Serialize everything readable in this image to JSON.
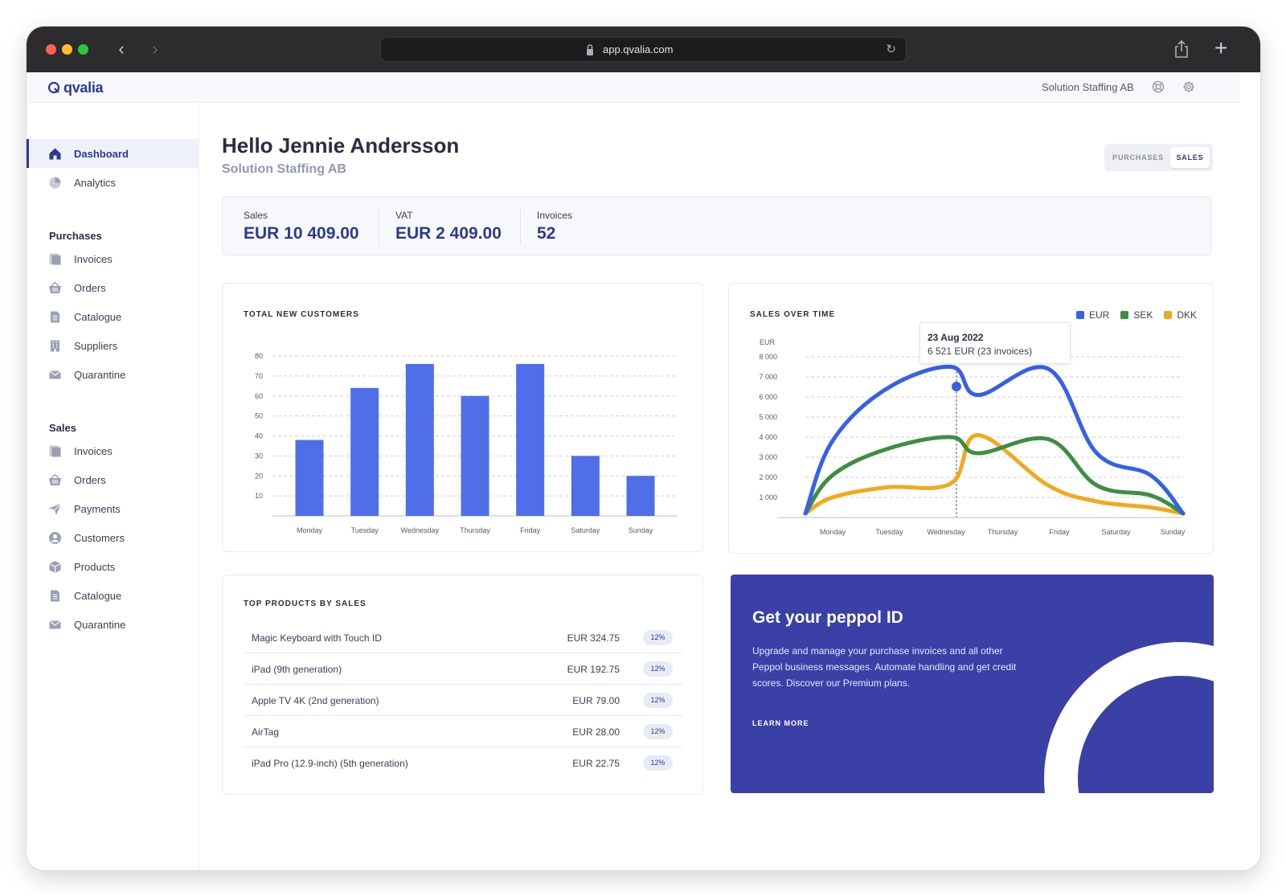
{
  "browser": {
    "url": "app.qvalia.com"
  },
  "appbar": {
    "logo_text": "qvalia",
    "company": "Solution Staffing AB",
    "help_icon": "lifebuoy-icon",
    "settings_icon": "gear-icon"
  },
  "sidebar": {
    "top_items": [
      {
        "label": "Dashboard",
        "icon": "home-icon",
        "active": true
      },
      {
        "label": "Analytics",
        "icon": "pie-chart-icon",
        "active": false
      }
    ],
    "purchases": {
      "heading": "Purchases",
      "items": [
        {
          "label": "Invoices",
          "icon": "invoice-icon"
        },
        {
          "label": "Orders",
          "icon": "basket-icon"
        },
        {
          "label": "Catalogue",
          "icon": "document-icon"
        },
        {
          "label": "Suppliers",
          "icon": "building-icon"
        },
        {
          "label": "Quarantine",
          "icon": "mail-icon"
        }
      ]
    },
    "sales": {
      "heading": "Sales",
      "items": [
        {
          "label": "Invoices",
          "icon": "invoice-icon"
        },
        {
          "label": "Orders",
          "icon": "basket-icon"
        },
        {
          "label": "Payments",
          "icon": "paper-plane-icon"
        },
        {
          "label": "Customers",
          "icon": "user-circle-icon"
        },
        {
          "label": "Products",
          "icon": "box-icon"
        },
        {
          "label": "Catalogue",
          "icon": "document-icon"
        },
        {
          "label": "Quarantine",
          "icon": "mail-icon"
        }
      ]
    }
  },
  "header": {
    "greeting": "Hello Jennie Andersson",
    "company": "Solution Staffing AB",
    "toggle": {
      "purchases": "PURCHASES",
      "sales": "SALES",
      "selected": "SALES"
    }
  },
  "stats": [
    {
      "label": "Sales",
      "value": "EUR 10 409.00"
    },
    {
      "label": "VAT",
      "value": "EUR 2 409.00"
    },
    {
      "label": "Invoices",
      "value": "52"
    }
  ],
  "customers_card": {
    "title": "TOTAL NEW CUSTOMERS"
  },
  "sales_card": {
    "title": "SALES OVER TIME",
    "tooltip_date": "23 Aug 2022",
    "tooltip_value": "6 521 EUR (23 invoices)"
  },
  "products_card": {
    "title": "TOP PRODUCTS BY SALES",
    "rows": [
      {
        "name": "Magic Keyboard with Touch ID",
        "price": "EUR 324.75",
        "badge": "12%"
      },
      {
        "name": "iPad (9th generation)",
        "price": "EUR 192.75",
        "badge": "12%"
      },
      {
        "name": "Apple TV 4K (2nd generation)",
        "price": "EUR 79.00",
        "badge": "12%"
      },
      {
        "name": "AirTag",
        "price": "EUR 28.00",
        "badge": "12%"
      },
      {
        "name": "iPad Pro (12.9-inch) (5th generation)",
        "price": "EUR 22.75",
        "badge": "12%"
      }
    ]
  },
  "promo": {
    "title": "Get your peppol ID",
    "text": "Upgrade and manage your purchase invoices and all other Peppol business messages. Automate handling and get credit scores. Discover our Premium plans.",
    "link": "LEARN MORE"
  },
  "chart_data": [
    {
      "type": "bar",
      "title": "TOTAL NEW CUSTOMERS",
      "categories": [
        "Monday",
        "Tuesday",
        "Wednesday",
        "Thursday",
        "Friday",
        "Saturday",
        "Sunday"
      ],
      "values": [
        38,
        64,
        76,
        60,
        76,
        30,
        20
      ],
      "ylim": [
        0,
        80
      ],
      "yticks": [
        10,
        20,
        30,
        40,
        50,
        60,
        70,
        80
      ],
      "color": "#4f6ee8",
      "grid": true
    },
    {
      "type": "line",
      "title": "SALES OVER TIME",
      "ylabel": "EUR",
      "categories": [
        "Monday",
        "Tuesday",
        "Wednesday",
        "Thursday",
        "Friday",
        "Saturday",
        "Sunday"
      ],
      "x": [
        0.0,
        0.5,
        1.5,
        2.7,
        3.2,
        4.5,
        5.4,
        6.4,
        7.0
      ],
      "ylim": [
        0,
        8000
      ],
      "yticks": [
        "1 000",
        "2 000",
        "3 000",
        "4 000",
        "5 000",
        "6 000",
        "7 000",
        "8 000"
      ],
      "ytick_values": [
        1000,
        2000,
        3000,
        4000,
        5000,
        6000,
        7000,
        8000
      ],
      "legend": "top-right",
      "grid": true,
      "series": [
        {
          "name": "EUR",
          "color": "#3461ec",
          "values": [
            200,
            3800,
            6400,
            7500,
            6100,
            7400,
            3200,
            2100,
            200
          ]
        },
        {
          "name": "SEK",
          "color": "#3e8e41",
          "values": [
            200,
            2100,
            3400,
            4000,
            3200,
            3900,
            1600,
            1100,
            200
          ]
        },
        {
          "name": "DKK",
          "color": "#f2a91e",
          "values": [
            200,
            1000,
            1500,
            1700,
            4100,
            1600,
            800,
            500,
            200
          ]
        }
      ],
      "highlight": {
        "series": "EUR",
        "x": 2.8,
        "value": 6521
      }
    }
  ]
}
